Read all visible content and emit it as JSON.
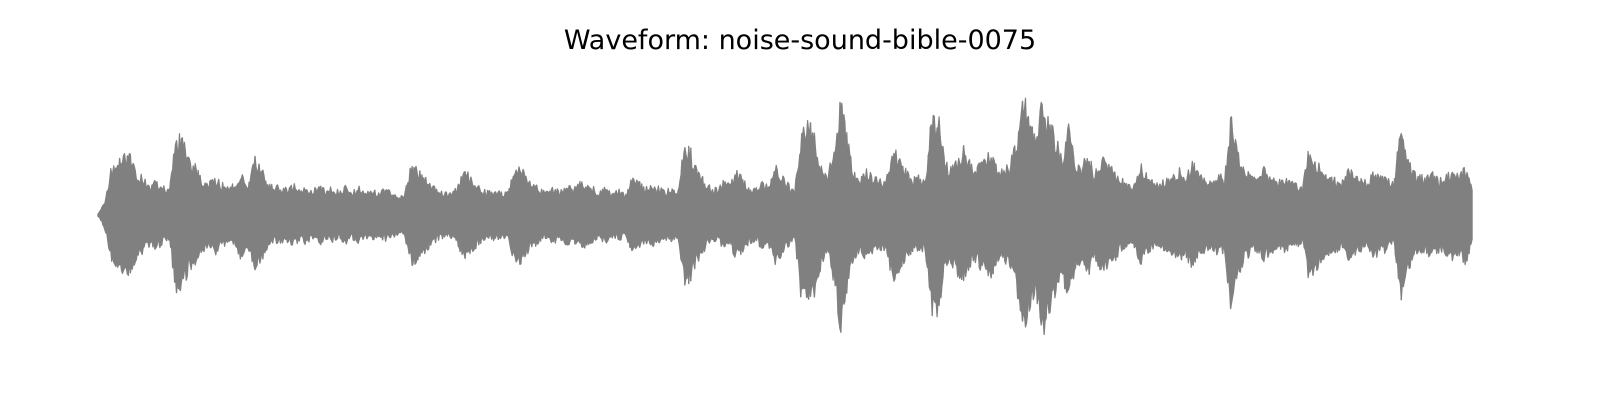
{
  "chart_data": {
    "type": "area",
    "title": "Waveform: noise-sound-bible-0075",
    "xlabel": "",
    "ylabel": "",
    "axes_visible": false,
    "grid": false,
    "legend": "none",
    "ylim": [
      -1.0,
      1.0
    ],
    "color": "#808080",
    "amplitude_envelope": [
      0.05,
      0.19,
      0.38,
      0.42,
      0.46,
      0.45,
      0.34,
      0.28,
      0.24,
      0.26,
      0.22,
      0.2,
      0.62,
      0.58,
      0.42,
      0.38,
      0.28,
      0.24,
      0.3,
      0.24,
      0.26,
      0.22,
      0.36,
      0.24,
      0.44,
      0.37,
      0.26,
      0.21,
      0.23,
      0.2,
      0.24,
      0.2,
      0.22,
      0.19,
      0.24,
      0.18,
      0.22,
      0.18,
      0.22,
      0.18,
      0.22,
      0.17,
      0.21,
      0.17,
      0.2,
      0.18,
      0.15,
      0.16,
      0.38,
      0.36,
      0.3,
      0.24,
      0.2,
      0.18,
      0.17,
      0.2,
      0.34,
      0.32,
      0.25,
      0.2,
      0.18,
      0.2,
      0.17,
      0.18,
      0.4,
      0.36,
      0.29,
      0.24,
      0.2,
      0.18,
      0.22,
      0.18,
      0.24,
      0.2,
      0.26,
      0.24,
      0.22,
      0.18,
      0.22,
      0.18,
      0.2,
      0.16,
      0.28,
      0.27,
      0.2,
      0.25,
      0.22,
      0.19,
      0.2,
      0.17,
      0.55,
      0.5,
      0.36,
      0.28,
      0.22,
      0.2,
      0.26,
      0.23,
      0.34,
      0.28,
      0.22,
      0.2,
      0.26,
      0.24,
      0.38,
      0.3,
      0.24,
      0.2,
      0.66,
      0.74,
      0.62,
      0.4,
      0.28,
      0.52,
      0.9,
      0.62,
      0.34,
      0.28,
      0.36,
      0.3,
      0.28,
      0.26,
      0.5,
      0.46,
      0.36,
      0.28,
      0.3,
      0.25,
      0.74,
      0.8,
      0.42,
      0.36,
      0.48,
      0.52,
      0.4,
      0.36,
      0.46,
      0.48,
      0.38,
      0.33,
      0.42,
      0.56,
      1.0,
      0.72,
      0.58,
      0.94,
      0.76,
      0.62,
      0.44,
      0.7,
      0.44,
      0.36,
      0.48,
      0.32,
      0.44,
      0.4,
      0.36,
      0.28,
      0.25,
      0.22,
      0.4,
      0.32,
      0.26,
      0.24,
      0.28,
      0.3,
      0.36,
      0.3,
      0.42,
      0.34,
      0.28,
      0.26,
      0.32,
      0.28,
      0.76,
      0.5,
      0.36,
      0.3,
      0.3,
      0.36,
      0.3,
      0.26,
      0.28,
      0.26,
      0.24,
      0.22,
      0.52,
      0.42,
      0.36,
      0.3,
      0.28,
      0.26,
      0.36,
      0.3,
      0.28,
      0.26,
      0.34,
      0.3,
      0.28,
      0.24,
      0.66,
      0.44,
      0.34,
      0.3,
      0.3,
      0.32,
      0.28,
      0.3,
      0.34,
      0.3,
      0.38,
      0.24
    ]
  }
}
